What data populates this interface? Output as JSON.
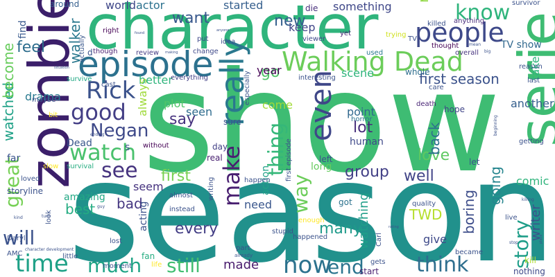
{
  "words": [
    {
      "text": "show",
      "color": "#3ebc73"
    },
    {
      "text": "season",
      "color": "#21918c"
    },
    {
      "text": "character",
      "color": "#2fb47c"
    },
    {
      "text": "zombie",
      "color": "#3b1f6a"
    },
    {
      "text": "serie",
      "color": "#3ebc73"
    },
    {
      "text": "episode",
      "color": "#2c718e"
    },
    {
      "text": "Walking Dead",
      "color": "#6ccd5a"
    },
    {
      "text": "people",
      "color": "#3e4989"
    },
    {
      "text": "really",
      "color": "#2a788e"
    },
    {
      "text": "even",
      "color": "#3f4788"
    },
    {
      "text": "now",
      "color": "#2c728e"
    },
    {
      "text": "time",
      "color": "#1fa187"
    },
    {
      "text": "good",
      "color": "#433e85"
    },
    {
      "text": "Rick",
      "color": "#3b528b"
    },
    {
      "text": "make",
      "color": "#481f70"
    },
    {
      "text": "watch",
      "color": "#4ac16d"
    },
    {
      "text": "see",
      "color": "#46337f"
    },
    {
      "text": "think",
      "color": "#2e6e8e"
    },
    {
      "text": "much",
      "color": "#20a486"
    },
    {
      "text": "still",
      "color": "#42be71"
    },
    {
      "text": "end",
      "color": "#2b748e"
    },
    {
      "text": "know",
      "color": "#2fb47c"
    },
    {
      "text": "thing",
      "color": "#35b779"
    },
    {
      "text": "way",
      "color": "#6ccd5a"
    },
    {
      "text": "story",
      "color": "#1f9e89"
    },
    {
      "text": "great",
      "color": "#75d054"
    },
    {
      "text": "Negan",
      "color": "#3e4989"
    },
    {
      "text": "will",
      "color": "#3b528b"
    },
    {
      "text": "go",
      "color": "#52c569"
    },
    {
      "text": "new",
      "color": "#355f8d"
    },
    {
      "text": "feel",
      "color": "#2e6e8e"
    },
    {
      "text": "say",
      "color": "#46327e"
    },
    {
      "text": "first",
      "color": "#77d153"
    },
    {
      "text": "want",
      "color": "#38588c"
    },
    {
      "text": "lot",
      "color": "#472d7b"
    },
    {
      "text": "every",
      "color": "#433e85"
    },
    {
      "text": "many",
      "color": "#1f9a8a"
    },
    {
      "text": "group",
      "color": "#424086"
    },
    {
      "text": "first season",
      "color": "#3b528b"
    },
    {
      "text": "watched",
      "color": "#1fa187"
    },
    {
      "text": "become",
      "color": "#67cc5c"
    },
    {
      "text": "walker",
      "color": "#2a788e"
    },
    {
      "text": "never",
      "color": "#90d743"
    },
    {
      "text": "well",
      "color": "#414487"
    },
    {
      "text": "love",
      "color": "#5ec962"
    },
    {
      "text": "back",
      "color": "#2d708e"
    },
    {
      "text": "going",
      "color": "#25858e"
    },
    {
      "text": "boring",
      "color": "#3d4d8a"
    },
    {
      "text": "best",
      "color": "#25ac82"
    },
    {
      "text": "bad",
      "color": "#453781"
    },
    {
      "text": "TWD",
      "color": "#b5de2b"
    },
    {
      "text": "watching",
      "color": "#1f9e89"
    },
    {
      "text": "made",
      "color": "#481b6d"
    },
    {
      "text": "writer",
      "color": "#3b528b"
    },
    {
      "text": "scene",
      "color": "#2fb47c"
    },
    {
      "text": "drama",
      "color": "#29798e"
    },
    {
      "text": "comic",
      "color": "#2fb47c"
    },
    {
      "text": "need",
      "color": "#39568c"
    },
    {
      "text": "give",
      "color": "#3e4989"
    },
    {
      "text": "seem",
      "color": "#46337f"
    },
    {
      "text": "year",
      "color": "#440154"
    },
    {
      "text": "keep",
      "color": "#404588"
    },
    {
      "text": "something",
      "color": "#3f4788"
    },
    {
      "text": "started",
      "color": "#355f8d"
    },
    {
      "text": "world",
      "color": "#3f4788"
    },
    {
      "text": "actor",
      "color": "#2c718e"
    },
    {
      "text": "plot",
      "color": "#52c569"
    },
    {
      "text": "come",
      "color": "#a2da37"
    },
    {
      "text": "seen",
      "color": "#2f6c8e"
    },
    {
      "text": "point",
      "color": "#31688e"
    },
    {
      "text": "better",
      "color": "#2fb47c"
    },
    {
      "text": "always",
      "color": "#9fda3a"
    },
    {
      "text": "another",
      "color": "#355f8d"
    },
    {
      "text": "take",
      "color": "#2fb47c"
    },
    {
      "text": "TV show",
      "color": "#31688e"
    },
    {
      "text": "Dead",
      "color": "#39568c"
    },
    {
      "text": "human",
      "color": "#3e4989"
    },
    {
      "text": "long",
      "color": "#65cb5e"
    },
    {
      "text": "amazing",
      "color": "#22a884"
    },
    {
      "text": "acting",
      "color": "#3b528b"
    },
    {
      "text": "action",
      "color": "#1fa187"
    },
    {
      "text": "find",
      "color": "#38598c"
    },
    {
      "text": "far",
      "color": "#3a548c"
    },
    {
      "text": "around",
      "color": "#355f8d"
    },
    {
      "text": "die",
      "color": "#472d7b"
    },
    {
      "text": "hope",
      "color": "#404588"
    },
    {
      "text": "got",
      "color": "#2c728e"
    },
    {
      "text": "kill",
      "color": "#b0dd2f"
    },
    {
      "text": "fan",
      "color": "#26ad81"
    },
    {
      "text": "let",
      "color": "#3b528b"
    },
    {
      "text": "whole",
      "color": "#2e6e8e"
    },
    {
      "text": "day",
      "color": "#424086"
    },
    {
      "text": "start",
      "color": "#481f70"
    },
    {
      "text": "left",
      "color": "#3b528b"
    },
    {
      "text": "sure",
      "color": "#3b528b"
    },
    {
      "text": "storyline",
      "color": "#3b528b"
    },
    {
      "text": "real",
      "color": "#481f70"
    },
    {
      "text": "nothing",
      "color": "#3e4989"
    },
    {
      "text": "review",
      "color": "#443a83"
    },
    {
      "text": "everything",
      "color": "#424086"
    },
    {
      "text": "interesting",
      "color": "#3b528b"
    },
    {
      "text": "death",
      "color": "#482475"
    },
    {
      "text": "horror",
      "color": "#2c718e"
    },
    {
      "text": "survival",
      "color": "#27ad81"
    },
    {
      "text": "put",
      "color": "#3e4989"
    },
    {
      "text": "survive",
      "color": "#22a884"
    },
    {
      "text": "actually",
      "color": "#39568c"
    },
    {
      "text": "though",
      "color": "#481f70"
    },
    {
      "text": "change",
      "color": "#3e4989"
    },
    {
      "text": "viewer",
      "color": "#3e4989"
    },
    {
      "text": "yet",
      "color": "#482475"
    },
    {
      "text": "used",
      "color": "#2a788e"
    },
    {
      "text": "trying",
      "color": "#d0e11c"
    },
    {
      "text": "killed",
      "color": "#3b528b"
    },
    {
      "text": "anything",
      "color": "#472d7b"
    },
    {
      "text": "thought",
      "color": "#440154"
    },
    {
      "text": "overall",
      "color": "#46327e"
    },
    {
      "text": "survivor",
      "color": "#3b528b"
    },
    {
      "text": "reason",
      "color": "#3b528b"
    },
    {
      "text": "maybe",
      "color": "#3b528b"
    },
    {
      "text": "especially",
      "color": "#3b528b"
    },
    {
      "text": "writing",
      "color": "#3b528b"
    },
    {
      "text": "happen",
      "color": "#3b528b"
    },
    {
      "text": "enough",
      "color": "#fde725"
    },
    {
      "text": "stupid",
      "color": "#3b528b"
    },
    {
      "text": "quality",
      "color": "#3b528b"
    },
    {
      "text": "live",
      "color": "#3b528b"
    },
    {
      "text": "almost",
      "color": "#3b528b"
    },
    {
      "text": "instead",
      "color": "#3b528b"
    },
    {
      "text": "part",
      "color": "#3b528b"
    },
    {
      "text": "little",
      "color": "#3b528b"
    },
    {
      "text": "lost",
      "color": "#3b528b"
    },
    {
      "text": "look",
      "color": "#3b528b"
    },
    {
      "text": "Daryl",
      "color": "#3b528b"
    },
    {
      "text": "AMC",
      "color": "#3b528b"
    },
    {
      "text": "character development",
      "color": "#3b528b"
    },
    {
      "text": "moment",
      "color": "#3b528b"
    },
    {
      "text": "life",
      "color": "#fde725"
    },
    {
      "text": "already",
      "color": "#3b528b"
    },
    {
      "text": "happened",
      "color": "#3b528b"
    },
    {
      "text": "gets",
      "color": "#3b528b"
    },
    {
      "text": "Carl",
      "color": "#3b528b"
    },
    {
      "text": "became",
      "color": "#3b528b"
    },
    {
      "text": "first episode",
      "color": "#3b528b"
    },
    {
      "text": "slow",
      "color": "#fde725"
    },
    {
      "text": "bit",
      "color": "#fde725"
    },
    {
      "text": "without",
      "color": "#440154"
    },
    {
      "text": "ending",
      "color": "#3b528b"
    },
    {
      "text": "loved",
      "color": "#3b528b"
    },
    {
      "text": "right",
      "color": "#440154"
    },
    {
      "text": "cast",
      "color": "#3b528b"
    },
    {
      "text": "idea",
      "color": "#3b528b"
    },
    {
      "text": "beginning",
      "color": "#3b528b"
    },
    {
      "text": "getting",
      "color": "#3b528b"
    },
    {
      "text": "killing",
      "color": "#3b528b"
    },
    {
      "text": "stop",
      "color": "#3b528b"
    },
    {
      "text": "making",
      "color": "#3b528b"
    },
    {
      "text": "found",
      "color": "#3b528b"
    },
    {
      "text": "anyone",
      "color": "#3b528b"
    },
    {
      "text": "big",
      "color": "#3b528b"
    },
    {
      "text": "mean",
      "color": "#3b528b"
    },
    {
      "text": "place",
      "color": "#3b528b"
    },
    {
      "text": "situation",
      "color": "#3b528b"
    },
    {
      "text": "turn",
      "color": "#3b528b"
    },
    {
      "text": "kind",
      "color": "#3b528b"
    },
    {
      "text": "last",
      "color": "#3b528b"
    },
    {
      "text": "TV",
      "color": "#3b528b"
    },
    {
      "text": "care",
      "color": "#3b528b"
    },
    {
      "text": "guy",
      "color": "#3b528b"
    },
    {
      "text": "rating",
      "color": "#3b528b"
    },
    {
      "text": "d",
      "color": "#3b528b"
    },
    {
      "text": "s",
      "color": "#3b528b"
    }
  ]
}
